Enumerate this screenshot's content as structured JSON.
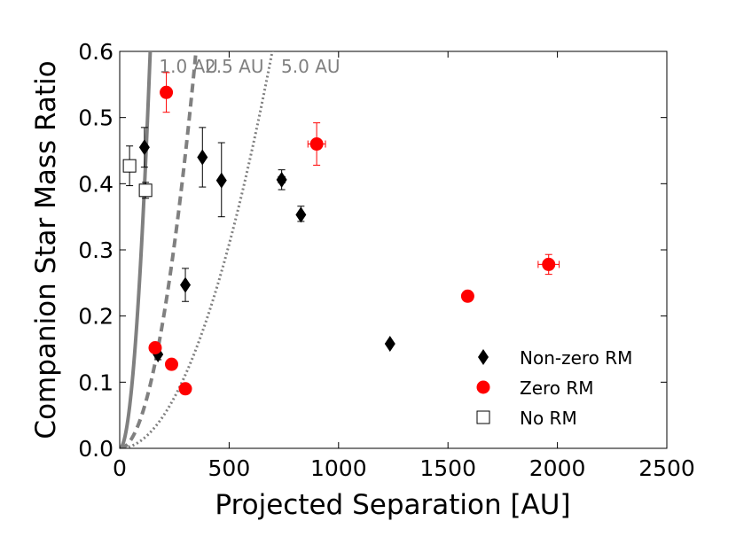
{
  "chart_data": {
    "type": "scatter",
    "xlabel": "Projected Separation [AU]",
    "ylabel": "Companion Star Mass Ratio",
    "xlim": [
      0,
      2500
    ],
    "ylim": [
      0.0,
      0.6
    ],
    "xticks": [
      0,
      500,
      1000,
      1500,
      2000,
      2500
    ],
    "xtick_labels": [
      "0",
      "500",
      "1000",
      "1500",
      "2000",
      "2500"
    ],
    "yticks": [
      0.0,
      0.1,
      0.2,
      0.3,
      0.4,
      0.5,
      0.6
    ],
    "ytick_labels": [
      "0.0",
      "0.1",
      "0.2",
      "0.3",
      "0.4",
      "0.5",
      "0.6"
    ],
    "grid": false,
    "legend_position": "lower-right",
    "colors": {
      "nonzero": "#000000",
      "zero": "#ff0000",
      "norm": "#ffffff",
      "curve": "#808080"
    },
    "curves": [
      {
        "name": "1.0 AU",
        "label": "1.0 AU",
        "a_au": 1.0,
        "style": "solid"
      },
      {
        "name": "2.5 AU",
        "label": "2.5 AU",
        "a_au": 2.5,
        "style": "dashed"
      },
      {
        "name": "5.0 AU",
        "label": "5.0 AU",
        "a_au": 5.0,
        "style": "dotted"
      }
    ],
    "series": [
      {
        "name": "Non-zero RM",
        "label": "Non-zero RM",
        "marker": "diamond",
        "color": "#000000",
        "points": [
          {
            "x": 113,
            "y": 0.455,
            "yerr": [
              0.03,
              0.03
            ],
            "xerr": 0
          },
          {
            "x": 378,
            "y": 0.44,
            "yerr": [
              0.045,
              0.045
            ],
            "xerr": 0
          },
          {
            "x": 465,
            "y": 0.405,
            "yerr": [
              0.055,
              0.057
            ],
            "xerr": 0
          },
          {
            "x": 740,
            "y": 0.406,
            "yerr": [
              0.015,
              0.015
            ],
            "xerr": 15
          },
          {
            "x": 828,
            "y": 0.353,
            "yerr": [
              0.01,
              0.013
            ],
            "xerr": 10
          },
          {
            "x": 300,
            "y": 0.247,
            "yerr": [
              0.025,
              0.025
            ],
            "xerr": 0
          },
          {
            "x": 175,
            "y": 0.142,
            "yerr": [
              0.008,
              0.008
            ],
            "xerr": 0
          },
          {
            "x": 1235,
            "y": 0.158,
            "yerr": [
              0,
              0
            ],
            "xerr": 0
          }
        ]
      },
      {
        "name": "Zero RM",
        "label": "Zero RM",
        "marker": "circle",
        "color": "#ff0000",
        "points": [
          {
            "x": 213,
            "y": 0.538,
            "yerr": [
              0.03,
              0.03
            ],
            "xerr": 0
          },
          {
            "x": 900,
            "y": 0.46,
            "yerr": [
              0.032,
              0.032
            ],
            "xerr": 40
          },
          {
            "x": 1590,
            "y": 0.23,
            "yerr": [
              0.006,
              0.006
            ],
            "xerr": 0
          },
          {
            "x": 1960,
            "y": 0.278,
            "yerr": [
              0.015,
              0.015
            ],
            "xerr": 48
          },
          {
            "x": 162,
            "y": 0.152,
            "yerr": [
              0.006,
              0.006
            ],
            "xerr": 0
          },
          {
            "x": 237,
            "y": 0.127,
            "yerr": [
              0,
              0
            ],
            "xerr": 0
          },
          {
            "x": 300,
            "y": 0.09,
            "yerr": [
              0,
              0
            ],
            "xerr": 0
          }
        ]
      },
      {
        "name": "No RM",
        "label": "No RM",
        "marker": "square",
        "color": "#ffffff",
        "points": [
          {
            "x": 45,
            "y": 0.427,
            "yerr": [
              0.03,
              0.03
            ],
            "xerr": 0
          },
          {
            "x": 118,
            "y": 0.39,
            "yerr": [
              0.012,
              0.012
            ],
            "xerr": 0
          }
        ]
      }
    ]
  }
}
